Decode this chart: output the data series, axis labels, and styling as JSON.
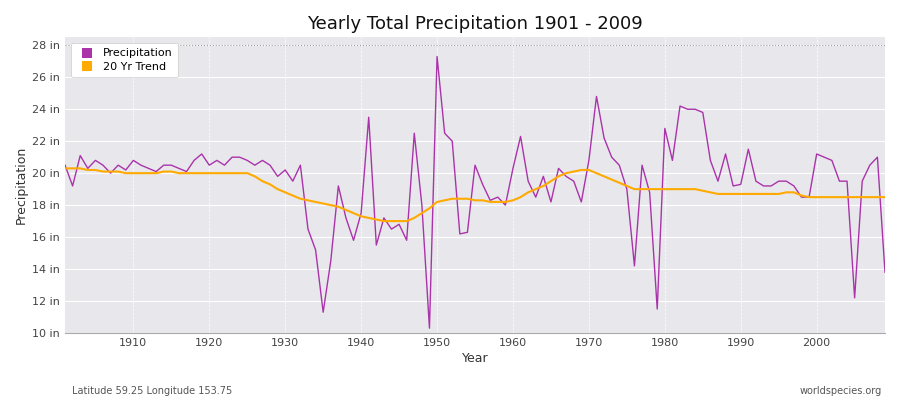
{
  "title": "Yearly Total Precipitation 1901 - 2009",
  "xlabel": "Year",
  "ylabel": "Precipitation",
  "subtitle_left": "Latitude 59.25 Longitude 153.75",
  "subtitle_right": "worldspecies.org",
  "ylim": [
    10,
    28.5
  ],
  "yticks": [
    10,
    12,
    14,
    16,
    18,
    20,
    22,
    24,
    26,
    28
  ],
  "ytick_labels": [
    "10 in",
    "12 in",
    "14 in",
    "16 in",
    "18 in",
    "20 in",
    "22 in",
    "24 in",
    "26 in",
    "28 in"
  ],
  "xlim": [
    1901,
    2009
  ],
  "xticks": [
    1910,
    1920,
    1930,
    1940,
    1950,
    1960,
    1970,
    1980,
    1990,
    2000
  ],
  "precip_color": "#aa33aa",
  "trend_color": "#ffaa00",
  "bg_color": "#ffffff",
  "plot_bg_color": "#e8e8ec",
  "grid_color": "#ffffff",
  "years": [
    1901,
    1902,
    1903,
    1904,
    1905,
    1906,
    1907,
    1908,
    1909,
    1910,
    1911,
    1912,
    1913,
    1914,
    1915,
    1916,
    1917,
    1918,
    1919,
    1920,
    1921,
    1922,
    1923,
    1924,
    1925,
    1926,
    1927,
    1928,
    1929,
    1930,
    1931,
    1932,
    1933,
    1934,
    1935,
    1936,
    1937,
    1938,
    1939,
    1940,
    1941,
    1942,
    1943,
    1944,
    1945,
    1946,
    1947,
    1948,
    1949,
    1950,
    1951,
    1952,
    1953,
    1954,
    1955,
    1956,
    1957,
    1958,
    1959,
    1960,
    1961,
    1962,
    1963,
    1964,
    1965,
    1966,
    1967,
    1968,
    1969,
    1970,
    1971,
    1972,
    1973,
    1974,
    1975,
    1976,
    1977,
    1978,
    1979,
    1980,
    1981,
    1982,
    1983,
    1984,
    1985,
    1986,
    1987,
    1988,
    1989,
    1990,
    1991,
    1992,
    1993,
    1994,
    1995,
    1996,
    1997,
    1998,
    1999,
    2000,
    2001,
    2002,
    2003,
    2004,
    2005,
    2006,
    2007,
    2008,
    2009
  ],
  "precip": [
    20.5,
    19.2,
    21.1,
    20.3,
    20.8,
    20.5,
    20.0,
    20.5,
    20.2,
    20.8,
    20.5,
    20.3,
    20.1,
    20.5,
    20.5,
    20.3,
    20.1,
    20.8,
    21.2,
    20.5,
    20.8,
    20.5,
    21.0,
    21.0,
    20.8,
    20.5,
    20.8,
    20.5,
    19.8,
    20.2,
    19.5,
    20.5,
    16.5,
    15.2,
    11.3,
    14.5,
    19.2,
    17.2,
    15.8,
    17.5,
    23.5,
    15.5,
    17.2,
    16.5,
    16.8,
    15.8,
    22.5,
    18.0,
    10.3,
    27.3,
    22.5,
    22.0,
    16.2,
    16.3,
    20.5,
    19.3,
    18.3,
    18.5,
    18.0,
    20.3,
    22.3,
    19.5,
    18.5,
    19.8,
    18.2,
    20.3,
    19.8,
    19.5,
    18.2,
    20.8,
    24.8,
    22.2,
    21.0,
    20.5,
    19.0,
    14.2,
    20.5,
    18.8,
    11.5,
    22.8,
    20.8,
    24.2,
    24.0,
    24.0,
    23.8,
    20.8,
    19.5,
    21.2,
    19.2,
    19.3,
    21.5,
    19.5,
    19.2,
    19.2,
    19.5,
    19.5,
    19.2,
    18.5,
    18.5,
    21.2,
    21.0,
    20.8,
    19.5,
    19.5,
    12.2,
    19.5,
    20.5,
    21.0,
    13.8
  ],
  "trend": [
    20.3,
    20.3,
    20.3,
    20.2,
    20.2,
    20.1,
    20.1,
    20.1,
    20.0,
    20.0,
    20.0,
    20.0,
    20.0,
    20.1,
    20.1,
    20.0,
    20.0,
    20.0,
    20.0,
    20.0,
    20.0,
    20.0,
    20.0,
    20.0,
    20.0,
    19.8,
    19.5,
    19.3,
    19.0,
    18.8,
    18.6,
    18.4,
    18.3,
    18.2,
    18.1,
    18.0,
    17.9,
    17.7,
    17.5,
    17.3,
    17.2,
    17.1,
    17.0,
    17.0,
    17.0,
    17.0,
    17.2,
    17.5,
    17.8,
    18.2,
    18.3,
    18.4,
    18.4,
    18.4,
    18.3,
    18.3,
    18.2,
    18.2,
    18.2,
    18.3,
    18.5,
    18.8,
    19.0,
    19.2,
    19.5,
    19.8,
    20.0,
    20.1,
    20.2,
    20.2,
    20.0,
    19.8,
    19.6,
    19.4,
    19.2,
    19.0,
    19.0,
    19.0,
    19.0,
    19.0,
    19.0,
    19.0,
    19.0,
    19.0,
    18.9,
    18.8,
    18.7,
    18.7,
    18.7,
    18.7,
    18.7,
    18.7,
    18.7,
    18.7,
    18.7,
    18.8,
    18.8,
    18.6,
    18.5,
    18.5,
    18.5,
    18.5,
    18.5,
    18.5,
    18.5,
    18.5,
    18.5,
    18.5,
    18.5
  ]
}
